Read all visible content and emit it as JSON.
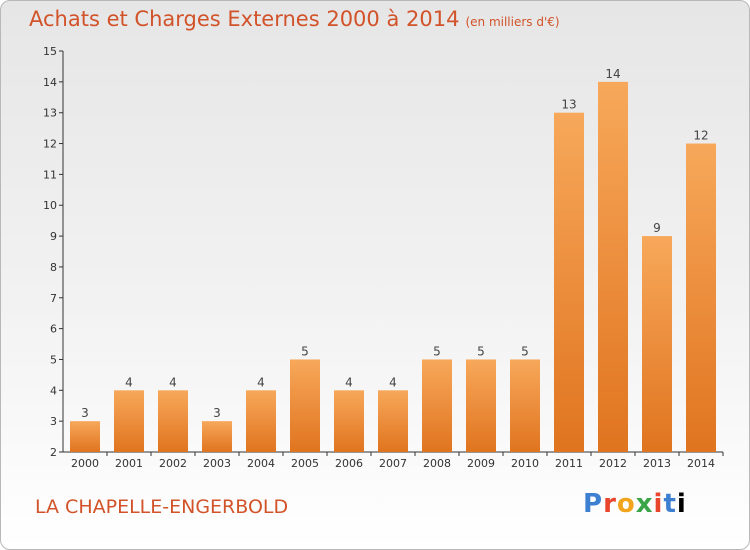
{
  "header": {
    "title": "Achats et Charges Externes 2000 à 2014",
    "subtitle": "(en milliers d'€)"
  },
  "footer": {
    "commune": "LA CHAPELLE-ENGERBOLD",
    "logo_letters": [
      "P",
      "r",
      "o",
      "x",
      "i",
      "t",
      "i"
    ]
  },
  "colors": {
    "title": "#d2532a",
    "bar_top": "#f7a85a",
    "bar_bottom": "#e0741f",
    "axis": "#333333"
  },
  "chart_data": {
    "type": "bar",
    "categories": [
      "2000",
      "2001",
      "2002",
      "2003",
      "2004",
      "2005",
      "2006",
      "2007",
      "2008",
      "2009",
      "2010",
      "2011",
      "2012",
      "2013",
      "2014"
    ],
    "values": [
      3,
      4,
      4,
      3,
      4,
      5,
      4,
      4,
      5,
      5,
      5,
      13,
      14,
      9,
      12
    ],
    "ylim": [
      2,
      15
    ],
    "yticks": [
      2,
      3,
      4,
      5,
      6,
      7,
      8,
      9,
      10,
      11,
      12,
      13,
      14,
      15
    ],
    "grid": false,
    "data_labels": true
  }
}
